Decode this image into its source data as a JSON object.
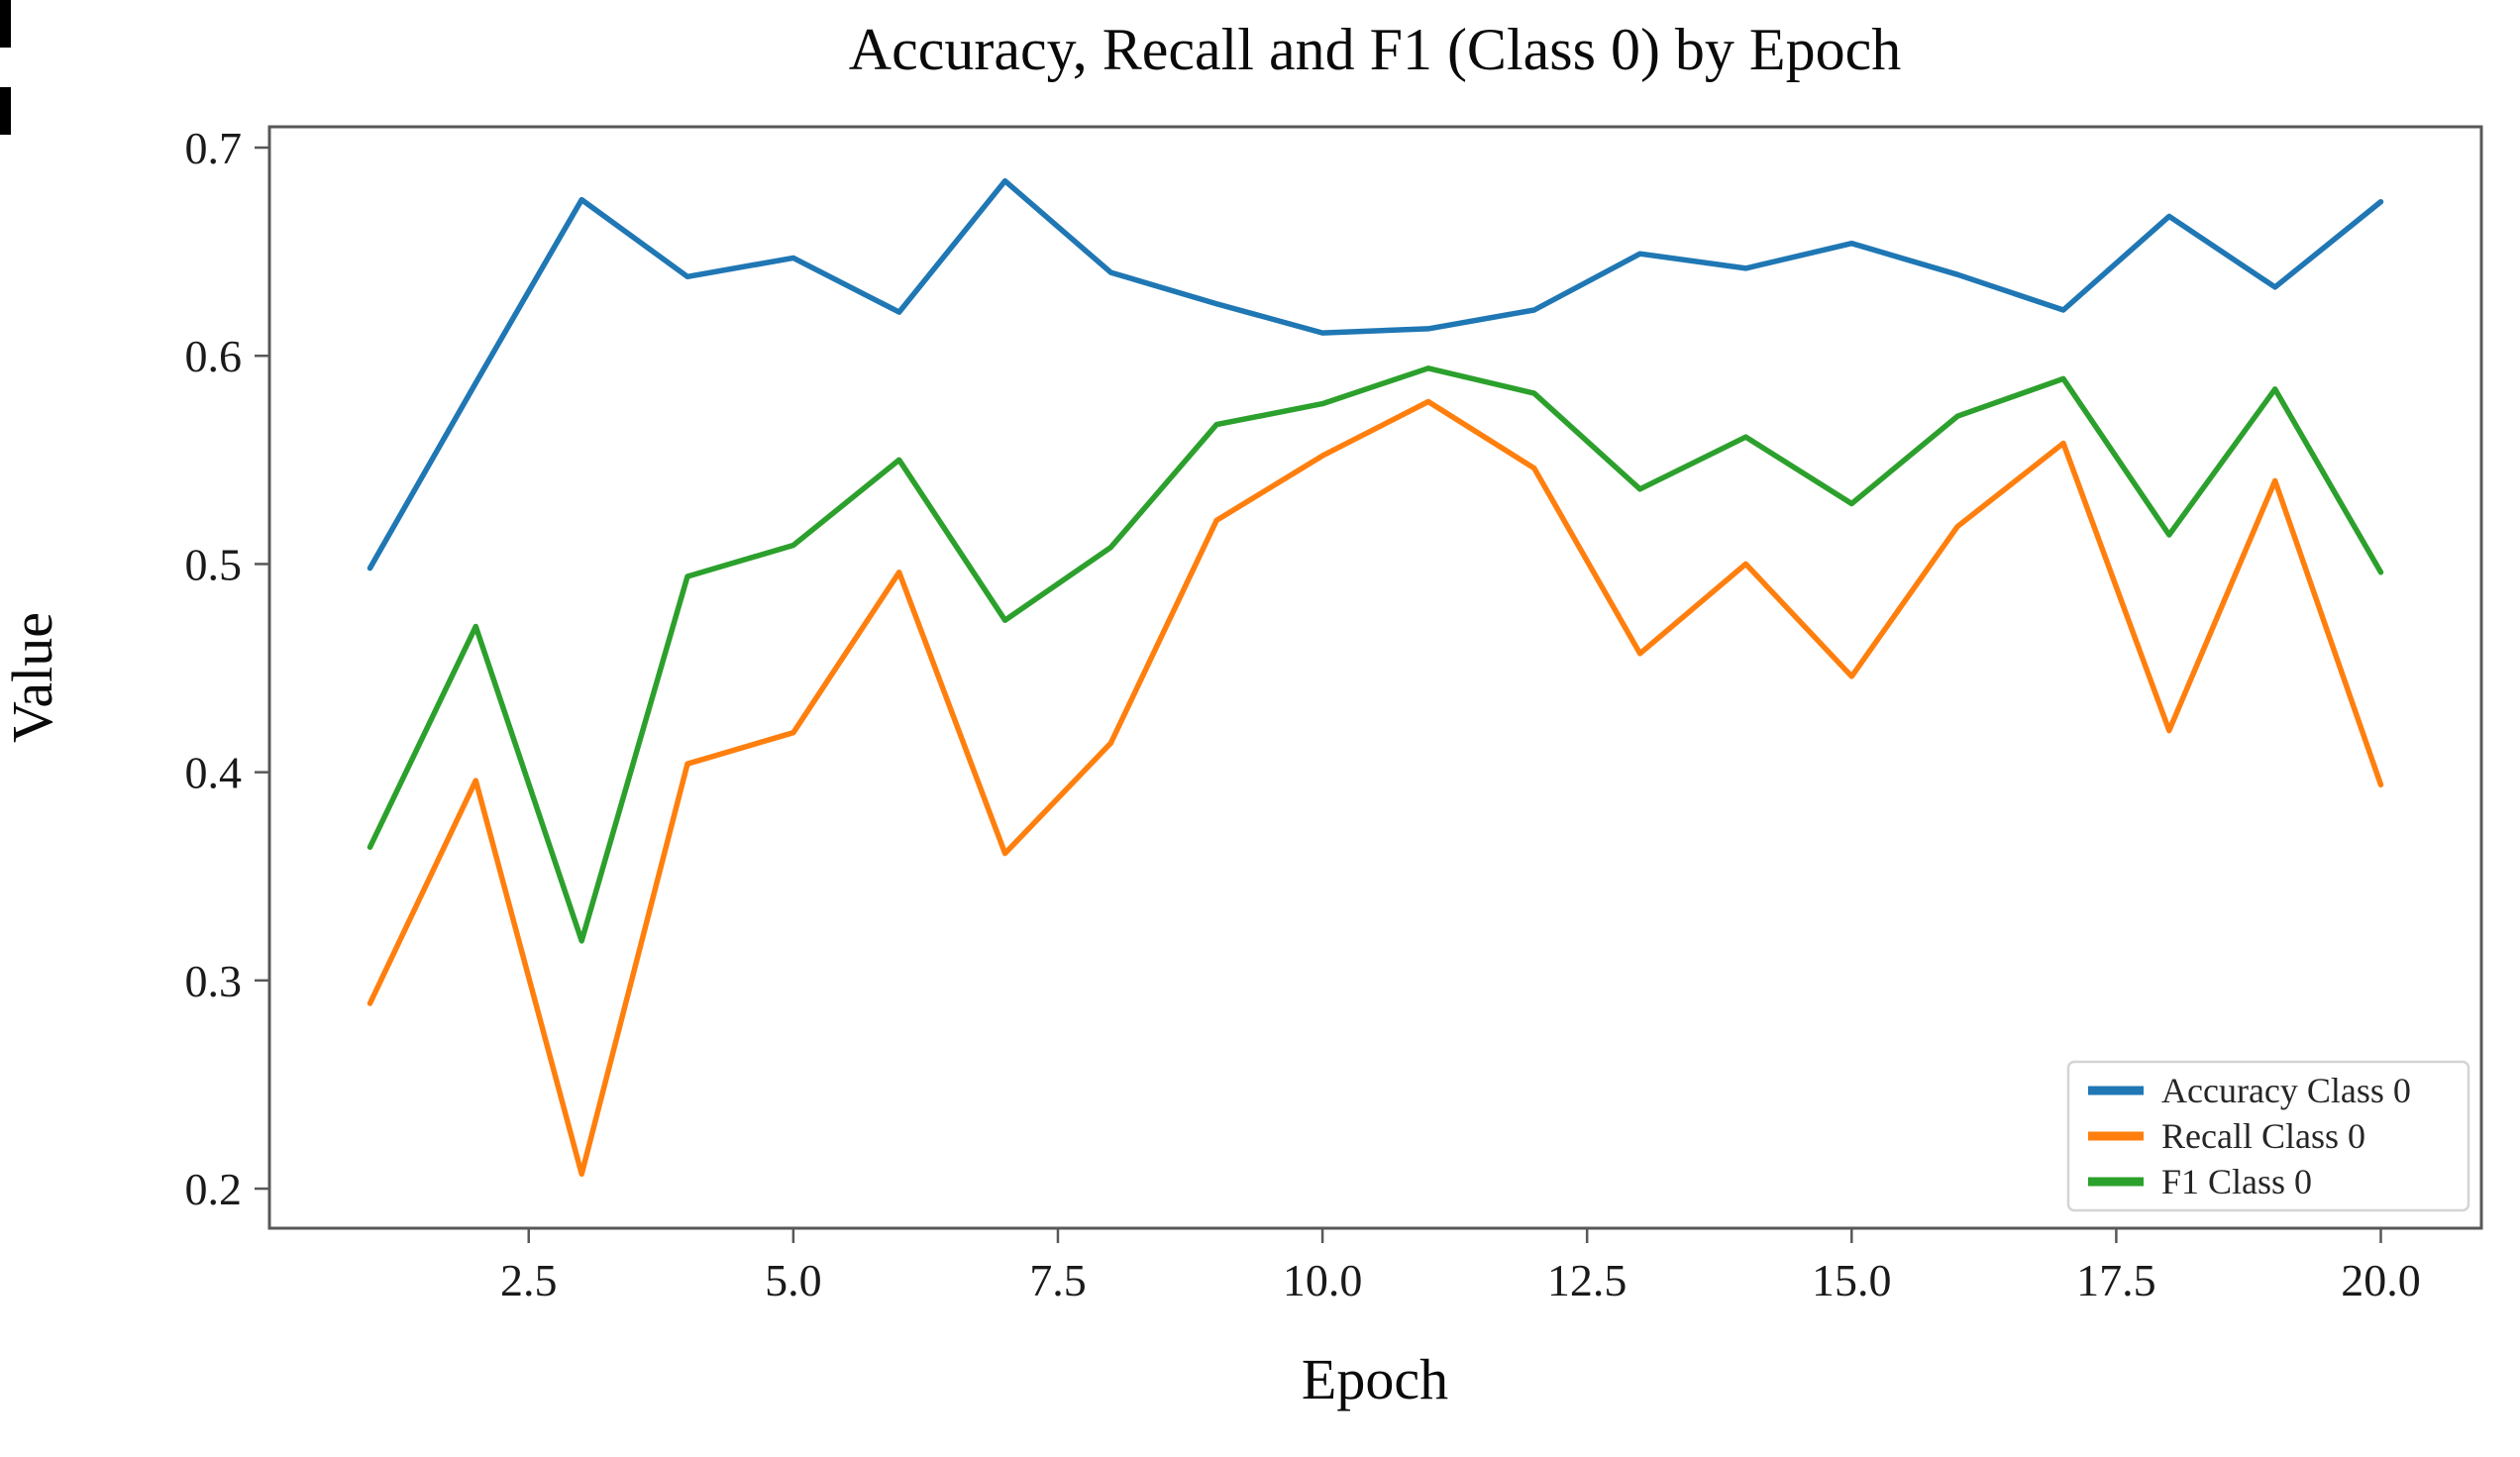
{
  "figure": {
    "title": "Accuracy, Recall and F1 (Class 0) by Epoch",
    "xlabel": "Epoch",
    "ylabel": "Value"
  },
  "chart_data": {
    "type": "line",
    "title": "Accuracy, Recall and F1 (Class 0) by Epoch",
    "xlabel": "Epoch",
    "ylabel": "Value",
    "x": [
      1,
      2,
      3,
      4,
      5,
      6,
      7,
      8,
      9,
      10,
      11,
      12,
      13,
      14,
      15,
      16,
      17,
      18,
      19,
      20
    ],
    "series": [
      {
        "name": "Accuracy Class 0",
        "color": "#1f77b4",
        "values": [
          0.498,
          0.587,
          0.675,
          0.638,
          0.647,
          0.621,
          0.684,
          0.64,
          0.625,
          0.611,
          0.613,
          0.622,
          0.649,
          0.642,
          0.654,
          0.639,
          0.622,
          0.667,
          0.633,
          0.674
        ]
      },
      {
        "name": "Recall Class 0",
        "color": "#ff7f0e",
        "values": [
          0.289,
          0.396,
          0.207,
          0.404,
          0.419,
          0.496,
          0.361,
          0.414,
          0.521,
          0.552,
          0.578,
          0.546,
          0.457,
          0.5,
          0.446,
          0.518,
          0.558,
          0.42,
          0.54,
          0.394
        ]
      },
      {
        "name": "F1 Class 0",
        "color": "#2ca02c",
        "values": [
          0.364,
          0.47,
          0.319,
          0.494,
          0.509,
          0.55,
          0.473,
          0.508,
          0.567,
          0.577,
          0.594,
          0.582,
          0.536,
          0.561,
          0.529,
          0.571,
          0.589,
          0.514,
          0.584,
          0.496
        ]
      }
    ],
    "xticks": [
      2.5,
      5.0,
      7.5,
      10.0,
      12.5,
      15.0,
      17.5,
      20.0
    ],
    "xtick_labels": [
      "2.5",
      "5.0",
      "7.5",
      "10.0",
      "12.5",
      "15.0",
      "17.5",
      "20.0"
    ],
    "yticks": [
      0.7,
      0.6,
      0.5,
      0.4,
      0.3,
      0.2
    ],
    "ytick_labels": [
      "0.7",
      "0.6",
      "0.5",
      "0.4",
      "0.3",
      "0.2"
    ],
    "xlim": [
      0.05,
      20.95
    ],
    "ylim": [
      0.181,
      0.71
    ],
    "grid": false,
    "legend_position": "lower right",
    "axis_color": "#58585a",
    "line_width": 5.5
  }
}
